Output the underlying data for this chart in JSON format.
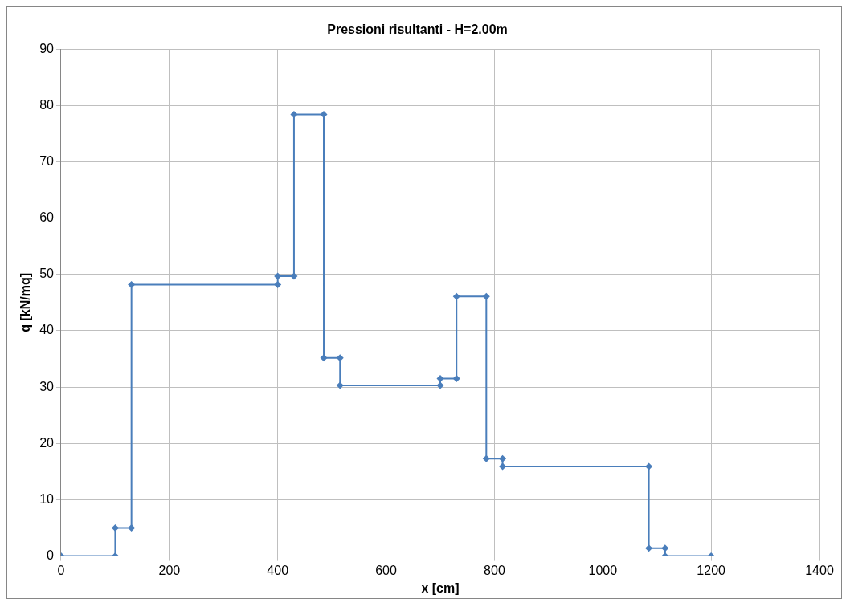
{
  "chart_data": {
    "type": "line",
    "title": "Pressioni risultanti - H=2.00m",
    "xlabel": "x [cm]",
    "ylabel": "q [kN/mq]",
    "x": [
      0,
      100,
      100,
      130,
      130,
      400,
      400,
      430,
      430,
      485,
      485,
      515,
      515,
      700,
      700,
      730,
      730,
      785,
      785,
      815,
      815,
      1085,
      1085,
      1115,
      1115,
      1200
    ],
    "series": [
      {
        "color": "#4a7ebb",
        "values": [
          0,
          0,
          5,
          5,
          48.2,
          48.2,
          49.7,
          49.7,
          78.4,
          78.4,
          35.2,
          35.2,
          30.3,
          30.3,
          31.5,
          31.5,
          46.1,
          46.1,
          17.3,
          17.3,
          15.9,
          15.9,
          1.4,
          1.4,
          0,
          0
        ]
      }
    ],
    "xlim": [
      0,
      1400
    ],
    "xticks": [
      0,
      200,
      400,
      600,
      800,
      1000,
      1200,
      1400
    ],
    "ylim": [
      0,
      90
    ],
    "yticks": [
      0,
      10,
      20,
      30,
      40,
      50,
      60,
      70,
      80,
      90
    ],
    "grid": true,
    "legend": false,
    "marker": "diamond",
    "line_style": "solid"
  }
}
